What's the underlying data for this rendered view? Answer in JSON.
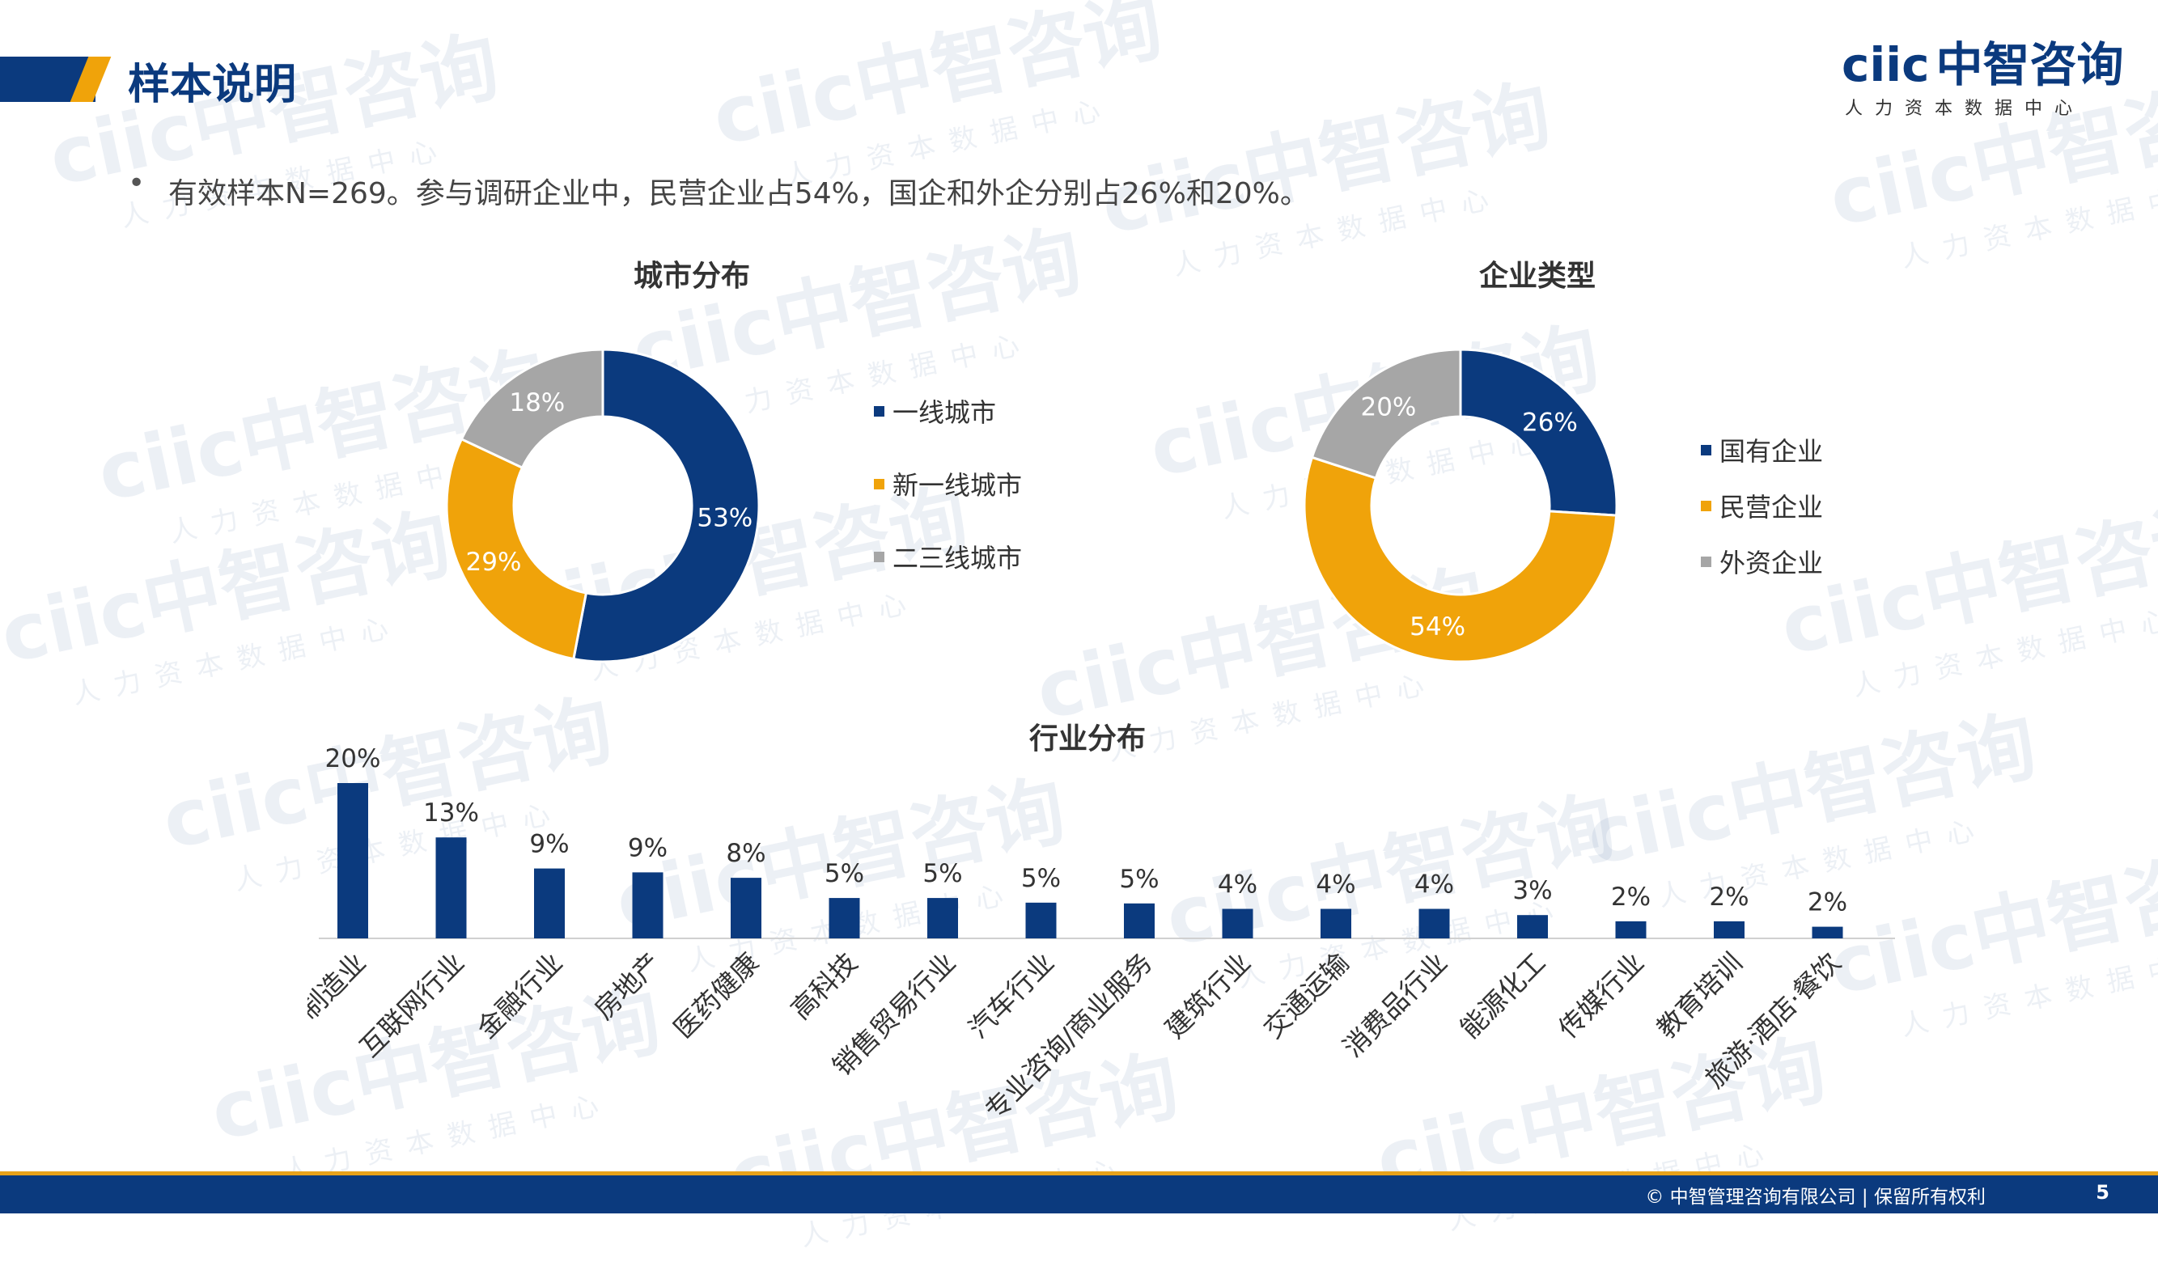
{
  "page": {
    "title": "样本说明",
    "summary": "有效样本N=269。参与调研企业中，民营企业占54%，国企和外企分别占26%和20%。",
    "bullet": "•"
  },
  "logo": {
    "mark_ciic": "ciic",
    "mark_name": "中智咨询",
    "sub": "人力资本数据中心"
  },
  "watermark": {
    "text": "ciic中智咨询",
    "sub": "人力资本数据中心"
  },
  "footer": {
    "copyright": "© 中智管理咨询有限公司 | 保留所有权利",
    "page_number": "5"
  },
  "colors": {
    "navy": "#0b3a7e",
    "orange": "#f0a30a",
    "gray": "#a6a6a6"
  },
  "chart_data": [
    {
      "type": "pie",
      "title": "城市分布",
      "labels": [
        "一线城市",
        "新一线城市",
        "二三线城市"
      ],
      "values": [
        53,
        29,
        18
      ],
      "value_labels": [
        "53%",
        "29%",
        "18%"
      ],
      "colors": [
        "#0b3a7e",
        "#f0a30a",
        "#a6a6a6"
      ],
      "donut": true,
      "legend": "right"
    },
    {
      "type": "pie",
      "title": "企业类型",
      "labels": [
        "国有企业",
        "民营企业",
        "外资企业"
      ],
      "values": [
        26,
        54,
        20
      ],
      "value_labels": [
        "26%",
        "54%",
        "20%"
      ],
      "colors": [
        "#0b3a7e",
        "#f0a30a",
        "#a6a6a6"
      ],
      "donut": true,
      "legend": "right"
    },
    {
      "type": "bar",
      "title": "行业分布",
      "categories": [
        "制造业",
        "互联网行业",
        "金融行业",
        "房地产",
        "医药健康",
        "高科技",
        "销售贸易行业",
        "汽车行业",
        "专业咨询/商业服务",
        "建筑行业",
        "交通运输",
        "消费品行业",
        "能源化工",
        "传媒行业",
        "教育培训",
        "旅游·酒店·餐饮"
      ],
      "values": [
        20,
        13,
        9,
        9,
        8,
        5,
        5,
        5,
        5,
        4,
        4,
        4,
        3,
        2,
        2,
        2
      ],
      "value_labels": [
        "20%",
        "13%",
        "9%",
        "9%",
        "8%",
        "5%",
        "5%",
        "5%",
        "5%",
        "4%",
        "4%",
        "4%",
        "3%",
        "2%",
        "2%",
        "2%"
      ],
      "color": "#0b3a7e",
      "bar_heights_rel": [
        20,
        13,
        9,
        8.5,
        7.8,
        5.2,
        5.2,
        4.6,
        4.5,
        3.8,
        3.8,
        3.8,
        3.0,
        2.2,
        2.2,
        1.5
      ],
      "grid": false
    }
  ]
}
